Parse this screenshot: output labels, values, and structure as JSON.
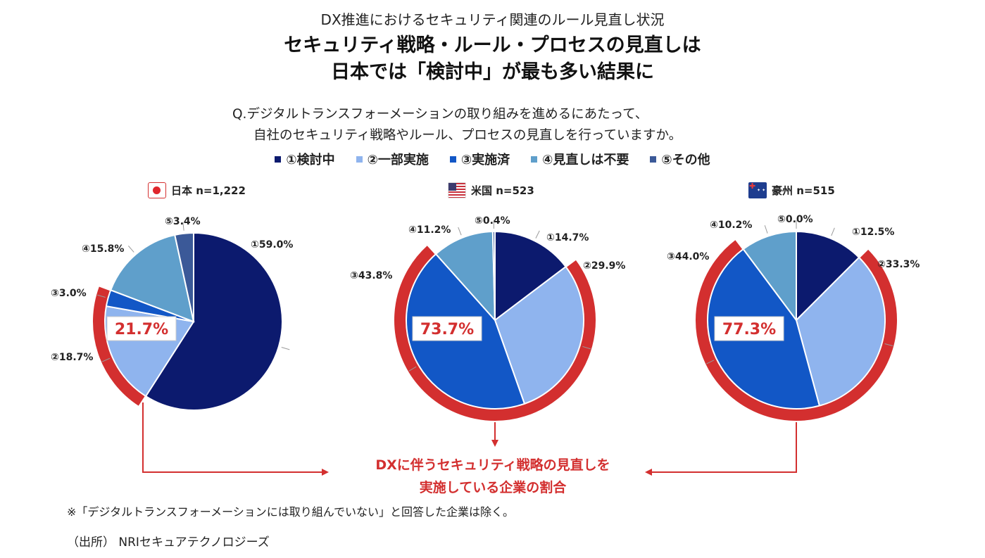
{
  "header": {
    "subtitle": "DX推進におけるセキュリティ関連のルール見直し状況",
    "title_line1": "セキュリティ戦略・ルール・プロセスの見直しは",
    "title_line2": "日本では「検討中」が最も多い結果に"
  },
  "question": {
    "line1": "Q.デジタルトランスフォーメーションの取り組みを進めるにあたって、",
    "line2": "自社のセキュリティ戦略やルール、プロセスの見直しを行っていますか。"
  },
  "legend": [
    {
      "label": "①検討中",
      "color": "#0c1a6e"
    },
    {
      "label": "②一部実施",
      "color": "#8fb4ee"
    },
    {
      "label": "③実施済",
      "color": "#1257c6"
    },
    {
      "label": "④見直しは不要",
      "color": "#5f9fcb"
    },
    {
      "label": "⑤その他",
      "color": "#3b5998"
    }
  ],
  "chart_data": [
    {
      "type": "pie",
      "title": "日本 n=1,222",
      "categories": [
        "①",
        "②",
        "③",
        "④",
        "⑤"
      ],
      "values": [
        59.0,
        18.7,
        3.0,
        15.8,
        3.4
      ],
      "labels": [
        "①59.0%",
        "②18.7%",
        "③3.0%",
        "④15.8%",
        "⑤3.4%"
      ],
      "highlight_label": "21.7%",
      "highlight_categories": [
        "②",
        "③"
      ]
    },
    {
      "type": "pie",
      "title": "米国 n=523",
      "categories": [
        "①",
        "②",
        "③",
        "④",
        "⑤"
      ],
      "values": [
        14.7,
        29.9,
        43.8,
        11.2,
        0.4
      ],
      "labels": [
        "①14.7%",
        "②29.9%",
        "③43.8%",
        "④11.2%",
        "⑤0.4%"
      ],
      "highlight_label": "73.7%",
      "highlight_categories": [
        "②",
        "③"
      ]
    },
    {
      "type": "pie",
      "title": "豪州 n=515",
      "categories": [
        "①",
        "②",
        "③",
        "④",
        "⑤"
      ],
      "values": [
        12.5,
        33.3,
        44.0,
        10.2,
        0.0
      ],
      "labels": [
        "①12.5%",
        "②33.3%",
        "③44.0%",
        "④10.2%",
        "⑤0.0%"
      ],
      "highlight_label": "77.3%",
      "highlight_categories": [
        "②",
        "③"
      ]
    }
  ],
  "callout": {
    "line1": "DXに伴うセキュリティ戦略の見直しを",
    "line2": "実施している企業の割合"
  },
  "footnote": "※「デジタルトランスフォーメーションには取り組んでいない」と回答した企業は除く。",
  "source": "（出所） NRIセキュアテクノロジーズ",
  "colors": {
    "highlight": "#d32f2f"
  }
}
